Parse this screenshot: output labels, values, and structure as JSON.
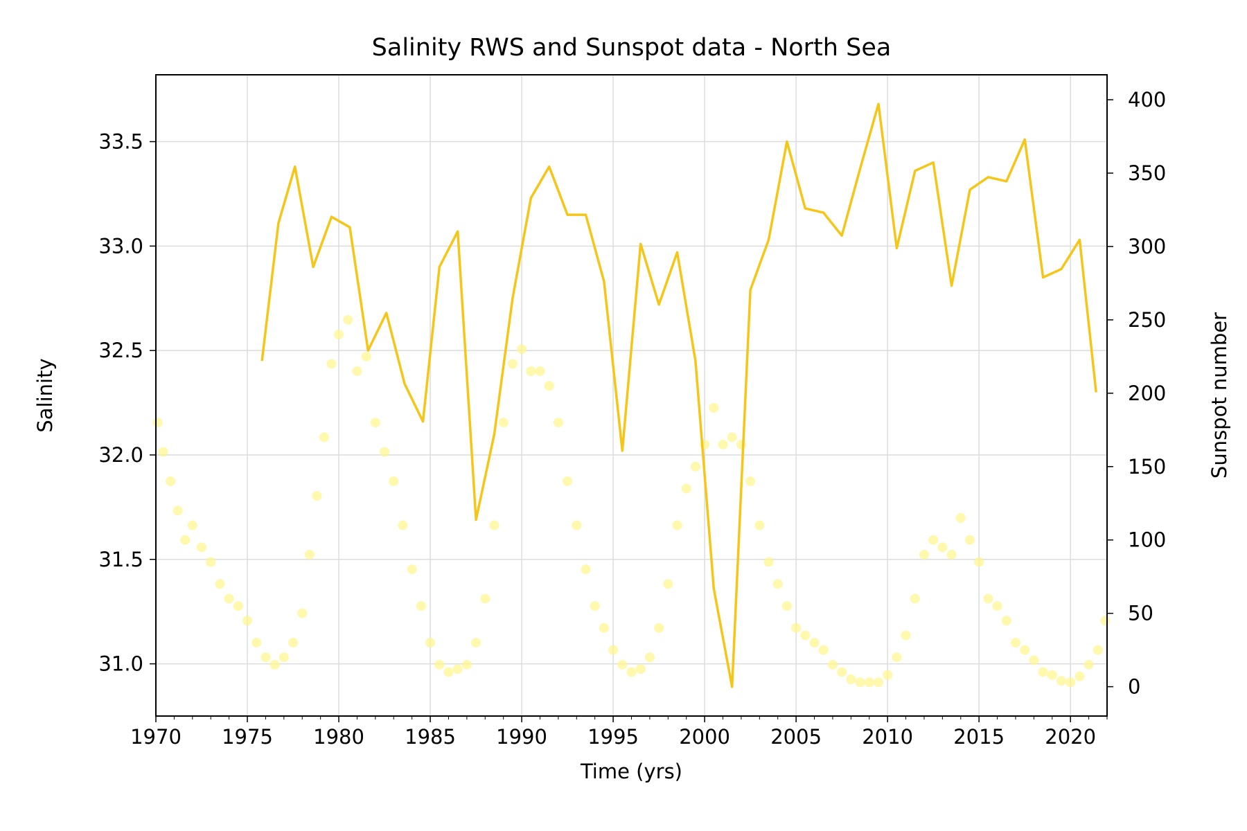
{
  "chart_data": {
    "type": "line",
    "title": "Salinity RWS and Sunspot data - North Sea",
    "xlabel": "Time (yrs)",
    "ylabel": "Salinity",
    "y2label": "Sunspot number",
    "xlim": [
      1970,
      2022
    ],
    "ylim": [
      30.75,
      33.82
    ],
    "y2lim": [
      -20,
      417
    ],
    "xticks": [
      1970,
      1975,
      1980,
      1985,
      1990,
      1995,
      2000,
      2005,
      2010,
      2015,
      2020
    ],
    "yticks": [
      31.0,
      31.5,
      32.0,
      32.5,
      33.0,
      33.5
    ],
    "y2ticks": [
      0,
      50,
      100,
      150,
      200,
      250,
      300,
      350,
      400
    ],
    "grid": true,
    "salinity_color": "#f5c518",
    "sunspot_color": "#fff58a",
    "series": [
      {
        "type": "line",
        "axis": "left",
        "x": [
          1975.8,
          1976.7,
          1977.6,
          1978.6,
          1979.6,
          1980.6,
          1981.6,
          1982.6,
          1983.6,
          1984.6,
          1985.5,
          1986.5,
          1987.5,
          1988.5,
          1989.5,
          1990.5,
          1991.5,
          1992.5,
          1993.5,
          1994.5,
          1995.5,
          1996.5,
          1997.5,
          1998.5,
          1999.5,
          2000.5,
          2001.5,
          2002.5,
          2003.5,
          2004.5,
          2005.5,
          2006.5,
          2007.5,
          2008.5,
          2009.5,
          2010.5,
          2011.5,
          2012.5,
          2013.5,
          2014.5,
          2015.5,
          2016.5,
          2017.5,
          2018.5,
          2019.5,
          2020.5,
          2021.4
        ],
        "values": [
          32.45,
          33.11,
          33.38,
          32.9,
          33.14,
          33.09,
          32.5,
          32.68,
          32.34,
          32.16,
          32.9,
          33.07,
          31.69,
          32.1,
          32.75,
          33.23,
          33.38,
          33.15,
          33.15,
          32.83,
          32.02,
          33.01,
          32.72,
          32.97,
          32.45,
          31.36,
          30.89,
          32.79,
          33.03,
          33.5,
          33.18,
          33.16,
          33.05,
          33.37,
          33.68,
          32.99,
          33.36,
          33.4,
          32.81,
          33.27,
          33.33,
          33.31,
          33.51,
          32.85,
          32.89,
          33.03,
          32.3
        ]
      },
      {
        "type": "scatter",
        "axis": "right",
        "x": [
          1970.1,
          1970.4,
          1970.8,
          1971.2,
          1971.6,
          1972.0,
          1972.5,
          1973.0,
          1973.5,
          1974.0,
          1974.5,
          1975.0,
          1975.5,
          1976.0,
          1976.5,
          1977.0,
          1977.5,
          1978.0,
          1978.4,
          1978.8,
          1979.2,
          1979.6,
          1980.0,
          1980.5,
          1981.0,
          1981.5,
          1982.0,
          1982.5,
          1983.0,
          1983.5,
          1984.0,
          1984.5,
          1985.0,
          1985.5,
          1986.0,
          1986.5,
          1987.0,
          1987.5,
          1988.0,
          1988.5,
          1989.0,
          1989.5,
          1990.0,
          1990.5,
          1991.0,
          1991.5,
          1992.0,
          1992.5,
          1993.0,
          1993.5,
          1994.0,
          1994.5,
          1995.0,
          1995.5,
          1996.0,
          1996.5,
          1997.0,
          1997.5,
          1998.0,
          1998.5,
          1999.0,
          1999.5,
          2000.0,
          2000.5,
          2001.0,
          2001.5,
          2002.0,
          2002.5,
          2003.0,
          2003.5,
          2004.0,
          2004.5,
          2005.0,
          2005.5,
          2006.0,
          2006.5,
          2007.0,
          2007.5,
          2008.0,
          2008.5,
          2009.0,
          2009.5,
          2010.0,
          2010.5,
          2011.0,
          2011.5,
          2012.0,
          2012.5,
          2013.0,
          2013.5,
          2014.0,
          2014.5,
          2015.0,
          2015.5,
          2016.0,
          2016.5,
          2017.0,
          2017.5,
          2018.0,
          2018.5,
          2019.0,
          2019.5,
          2020.0,
          2020.5,
          2021.0,
          2021.5,
          2021.9
        ],
        "values": [
          180,
          160,
          140,
          120,
          100,
          110,
          95,
          85,
          70,
          60,
          55,
          45,
          30,
          20,
          15,
          20,
          30,
          50,
          90,
          130,
          170,
          220,
          240,
          250,
          215,
          225,
          180,
          160,
          140,
          110,
          80,
          55,
          30,
          15,
          10,
          12,
          15,
          30,
          60,
          110,
          180,
          220,
          230,
          215,
          215,
          205,
          180,
          140,
          110,
          80,
          55,
          40,
          25,
          15,
          10,
          12,
          20,
          40,
          70,
          110,
          135,
          150,
          165,
          190,
          165,
          170,
          165,
          140,
          110,
          85,
          70,
          55,
          40,
          35,
          30,
          25,
          15,
          10,
          5,
          3,
          3,
          3,
          8,
          20,
          35,
          60,
          90,
          100,
          95,
          90,
          115,
          100,
          85,
          60,
          55,
          45,
          30,
          25,
          18,
          10,
          8,
          4,
          3,
          7,
          15,
          25,
          45
        ]
      }
    ]
  }
}
